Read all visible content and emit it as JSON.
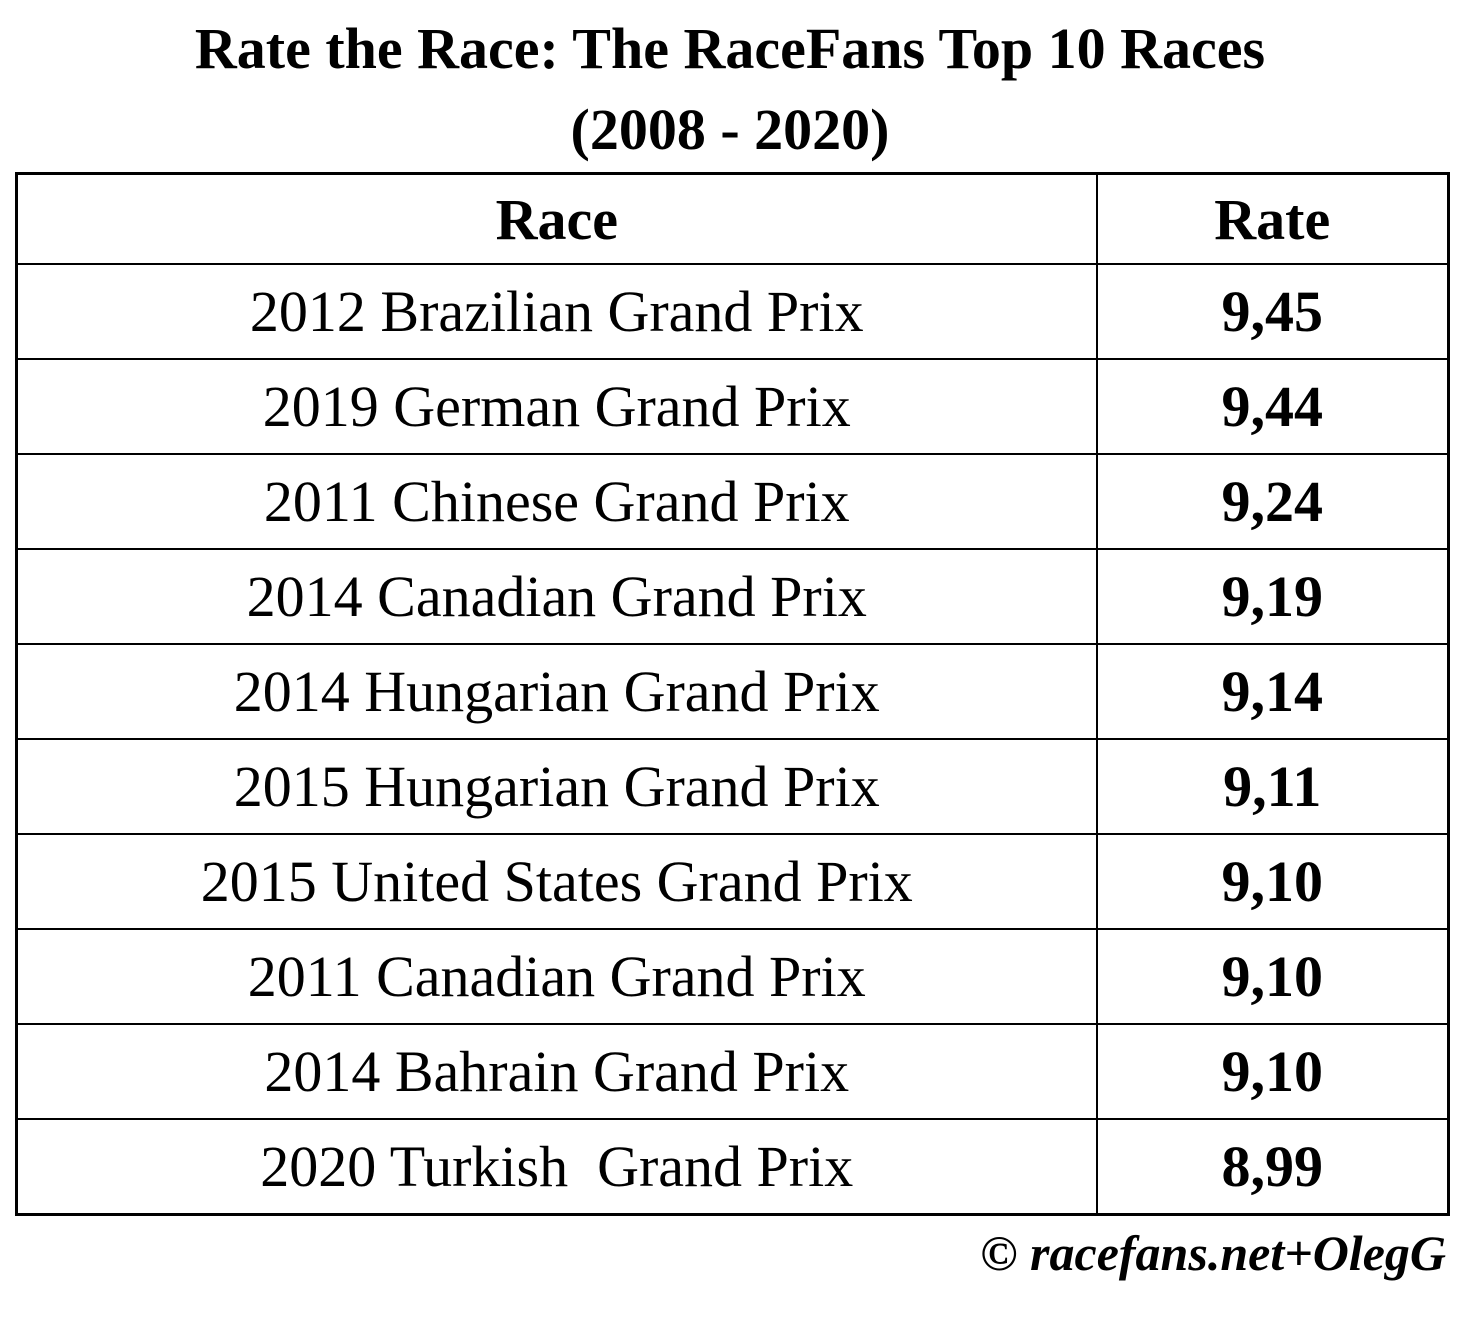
{
  "title": {
    "line1": "Rate the Race: The RaceFans Top 10 Races",
    "line2": "(2008 - 2020)"
  },
  "table": {
    "columns": [
      "Race",
      "Rate"
    ],
    "rows": [
      {
        "race": "2012 Brazilian Grand Prix",
        "rate": "9,45"
      },
      {
        "race": "2019 German Grand Prix",
        "rate": "9,44"
      },
      {
        "race": "2011 Chinese Grand Prix",
        "rate": "9,24"
      },
      {
        "race": "2014 Canadian Grand Prix",
        "rate": "9,19"
      },
      {
        "race": "2014 Hungarian Grand Prix",
        "rate": "9,14"
      },
      {
        "race": "2015 Hungarian Grand Prix",
        "rate": "9,11"
      },
      {
        "race": "2015 United States Grand Prix",
        "rate": "9,10"
      },
      {
        "race": "2011 Canadian Grand Prix",
        "rate": "9,10"
      },
      {
        "race": "2014 Bahrain Grand Prix",
        "rate": "9,10"
      },
      {
        "race": "2020 Turkish  Grand Prix",
        "rate": "8,99"
      }
    ]
  },
  "footer": {
    "credit": "© racefans.net+OlegG"
  },
  "colors": {
    "background": "#ffffff",
    "text": "#000000",
    "border": "#000000"
  },
  "chart_data": {
    "type": "table",
    "title": "Rate the Race: The RaceFans Top 10 Races (2008 - 2020)",
    "columns": [
      "Race",
      "Rate"
    ],
    "categories": [
      "2012 Brazilian Grand Prix",
      "2019 German Grand Prix",
      "2011 Chinese Grand Prix",
      "2014 Canadian Grand Prix",
      "2014 Hungarian Grand Prix",
      "2015 Hungarian Grand Prix",
      "2015 United States Grand Prix",
      "2011 Canadian Grand Prix",
      "2014 Bahrain Grand Prix",
      "2020 Turkish  Grand Prix"
    ],
    "values": [
      9.45,
      9.44,
      9.24,
      9.19,
      9.14,
      9.11,
      9.1,
      9.1,
      9.1,
      8.99
    ],
    "value_display": [
      "9,45",
      "9,44",
      "9,24",
      "9,19",
      "9,14",
      "9,11",
      "9,10",
      "9,10",
      "9,10",
      "8,99"
    ],
    "value_format": "comma-decimal",
    "source_credit": "© racefans.net+OlegG"
  }
}
